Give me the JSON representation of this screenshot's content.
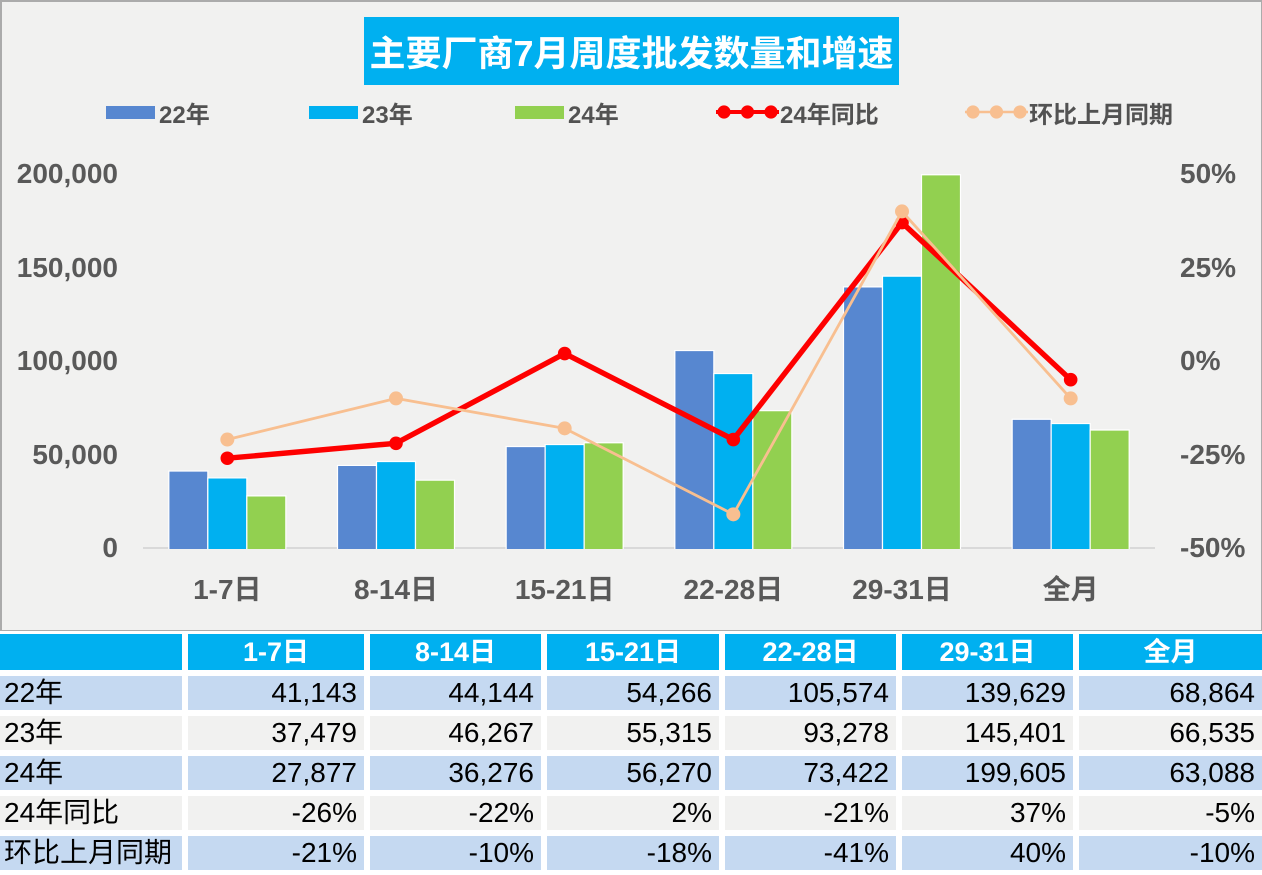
{
  "chart": {
    "title": "主要厂商7月周度批发数量和增速",
    "panel_bg": "#f1f1f0",
    "frame_color": "#ababab",
    "title_bg": "#00b0f0",
    "title_color": "#ffffff"
  },
  "legend": {
    "text_color": "#525252",
    "items": [
      {
        "label": "22年",
        "type": "bar-swatch",
        "color": "#5787d0"
      },
      {
        "label": "23年",
        "type": "bar-swatch",
        "color": "#00b0f0"
      },
      {
        "label": "24年",
        "type": "bar-swatch",
        "color": "#92d050"
      },
      {
        "label": "24年同比",
        "type": "line-marker",
        "color": "#fe0000"
      },
      {
        "label": "环比上月同期",
        "type": "line-marker",
        "color": "#f8bf90"
      }
    ]
  },
  "chart_data": {
    "type": "bar+line",
    "title": "主要厂商7月周度批发数量和增速",
    "categories": [
      "1-7日",
      "8-14日",
      "15-21日",
      "22-28日",
      "29-31日",
      "全月"
    ],
    "bar_series": [
      {
        "name": "22年",
        "color": "#5787d0",
        "axis": "left",
        "values": [
          41143,
          44144,
          54266,
          105574,
          139629,
          68864
        ]
      },
      {
        "name": "23年",
        "color": "#00b0f0",
        "axis": "left",
        "values": [
          37479,
          46267,
          55315,
          93278,
          145401,
          66535
        ]
      },
      {
        "name": "24年",
        "color": "#92d050",
        "axis": "left",
        "values": [
          27877,
          36276,
          56270,
          73422,
          199605,
          63088
        ]
      }
    ],
    "line_series": [
      {
        "name": "24年同比",
        "color": "#fe0000",
        "axis": "right",
        "values_pct": [
          -26,
          -22,
          2,
          -21,
          37,
          -5
        ]
      },
      {
        "name": "环比上月同期",
        "color": "#f8bf90",
        "axis": "right",
        "values_pct": [
          -21,
          -10,
          -18,
          -41,
          40,
          -10
        ]
      }
    ],
    "y_axis": {
      "min": 0,
      "max": 200000,
      "ticks": [
        "0",
        "50,000",
        "100,000",
        "150,000",
        "200,000"
      ],
      "label_color": "#595959"
    },
    "y2_axis": {
      "min": -50,
      "max": 50,
      "ticks": [
        "-50%",
        "-25%",
        "0%",
        "25%",
        "50%"
      ],
      "label_color": "#595959"
    },
    "axis_line_color": "#d9d9d9",
    "grid": false,
    "legend_position": "top"
  },
  "table": {
    "columns": [
      "",
      "1-7日",
      "8-14日",
      "15-21日",
      "22-28日",
      "29-31日",
      "全月"
    ],
    "rows": [
      {
        "label": "22年",
        "values": [
          "41,143",
          "44,144",
          "54,266",
          "105,574",
          "139,629",
          "68,864"
        ]
      },
      {
        "label": "23年",
        "values": [
          "37,479",
          "46,267",
          "55,315",
          "93,278",
          "145,401",
          "66,535"
        ]
      },
      {
        "label": "24年",
        "values": [
          "27,877",
          "36,276",
          "56,270",
          "73,422",
          "199,605",
          "63,088"
        ]
      },
      {
        "label": "24年同比",
        "values": [
          "-26%",
          "-22%",
          "2%",
          "-21%",
          "37%",
          "-5%"
        ]
      },
      {
        "label": "环比上月同期",
        "values": [
          "-21%",
          "-10%",
          "-18%",
          "-41%",
          "40%",
          "-10%"
        ]
      }
    ],
    "header_bg": "#00b0f0",
    "header_text_color": "#ffffff",
    "band_color": "#c5d9f1",
    "alt_band_color": "#f1f1f0",
    "value_color": "#000000"
  }
}
